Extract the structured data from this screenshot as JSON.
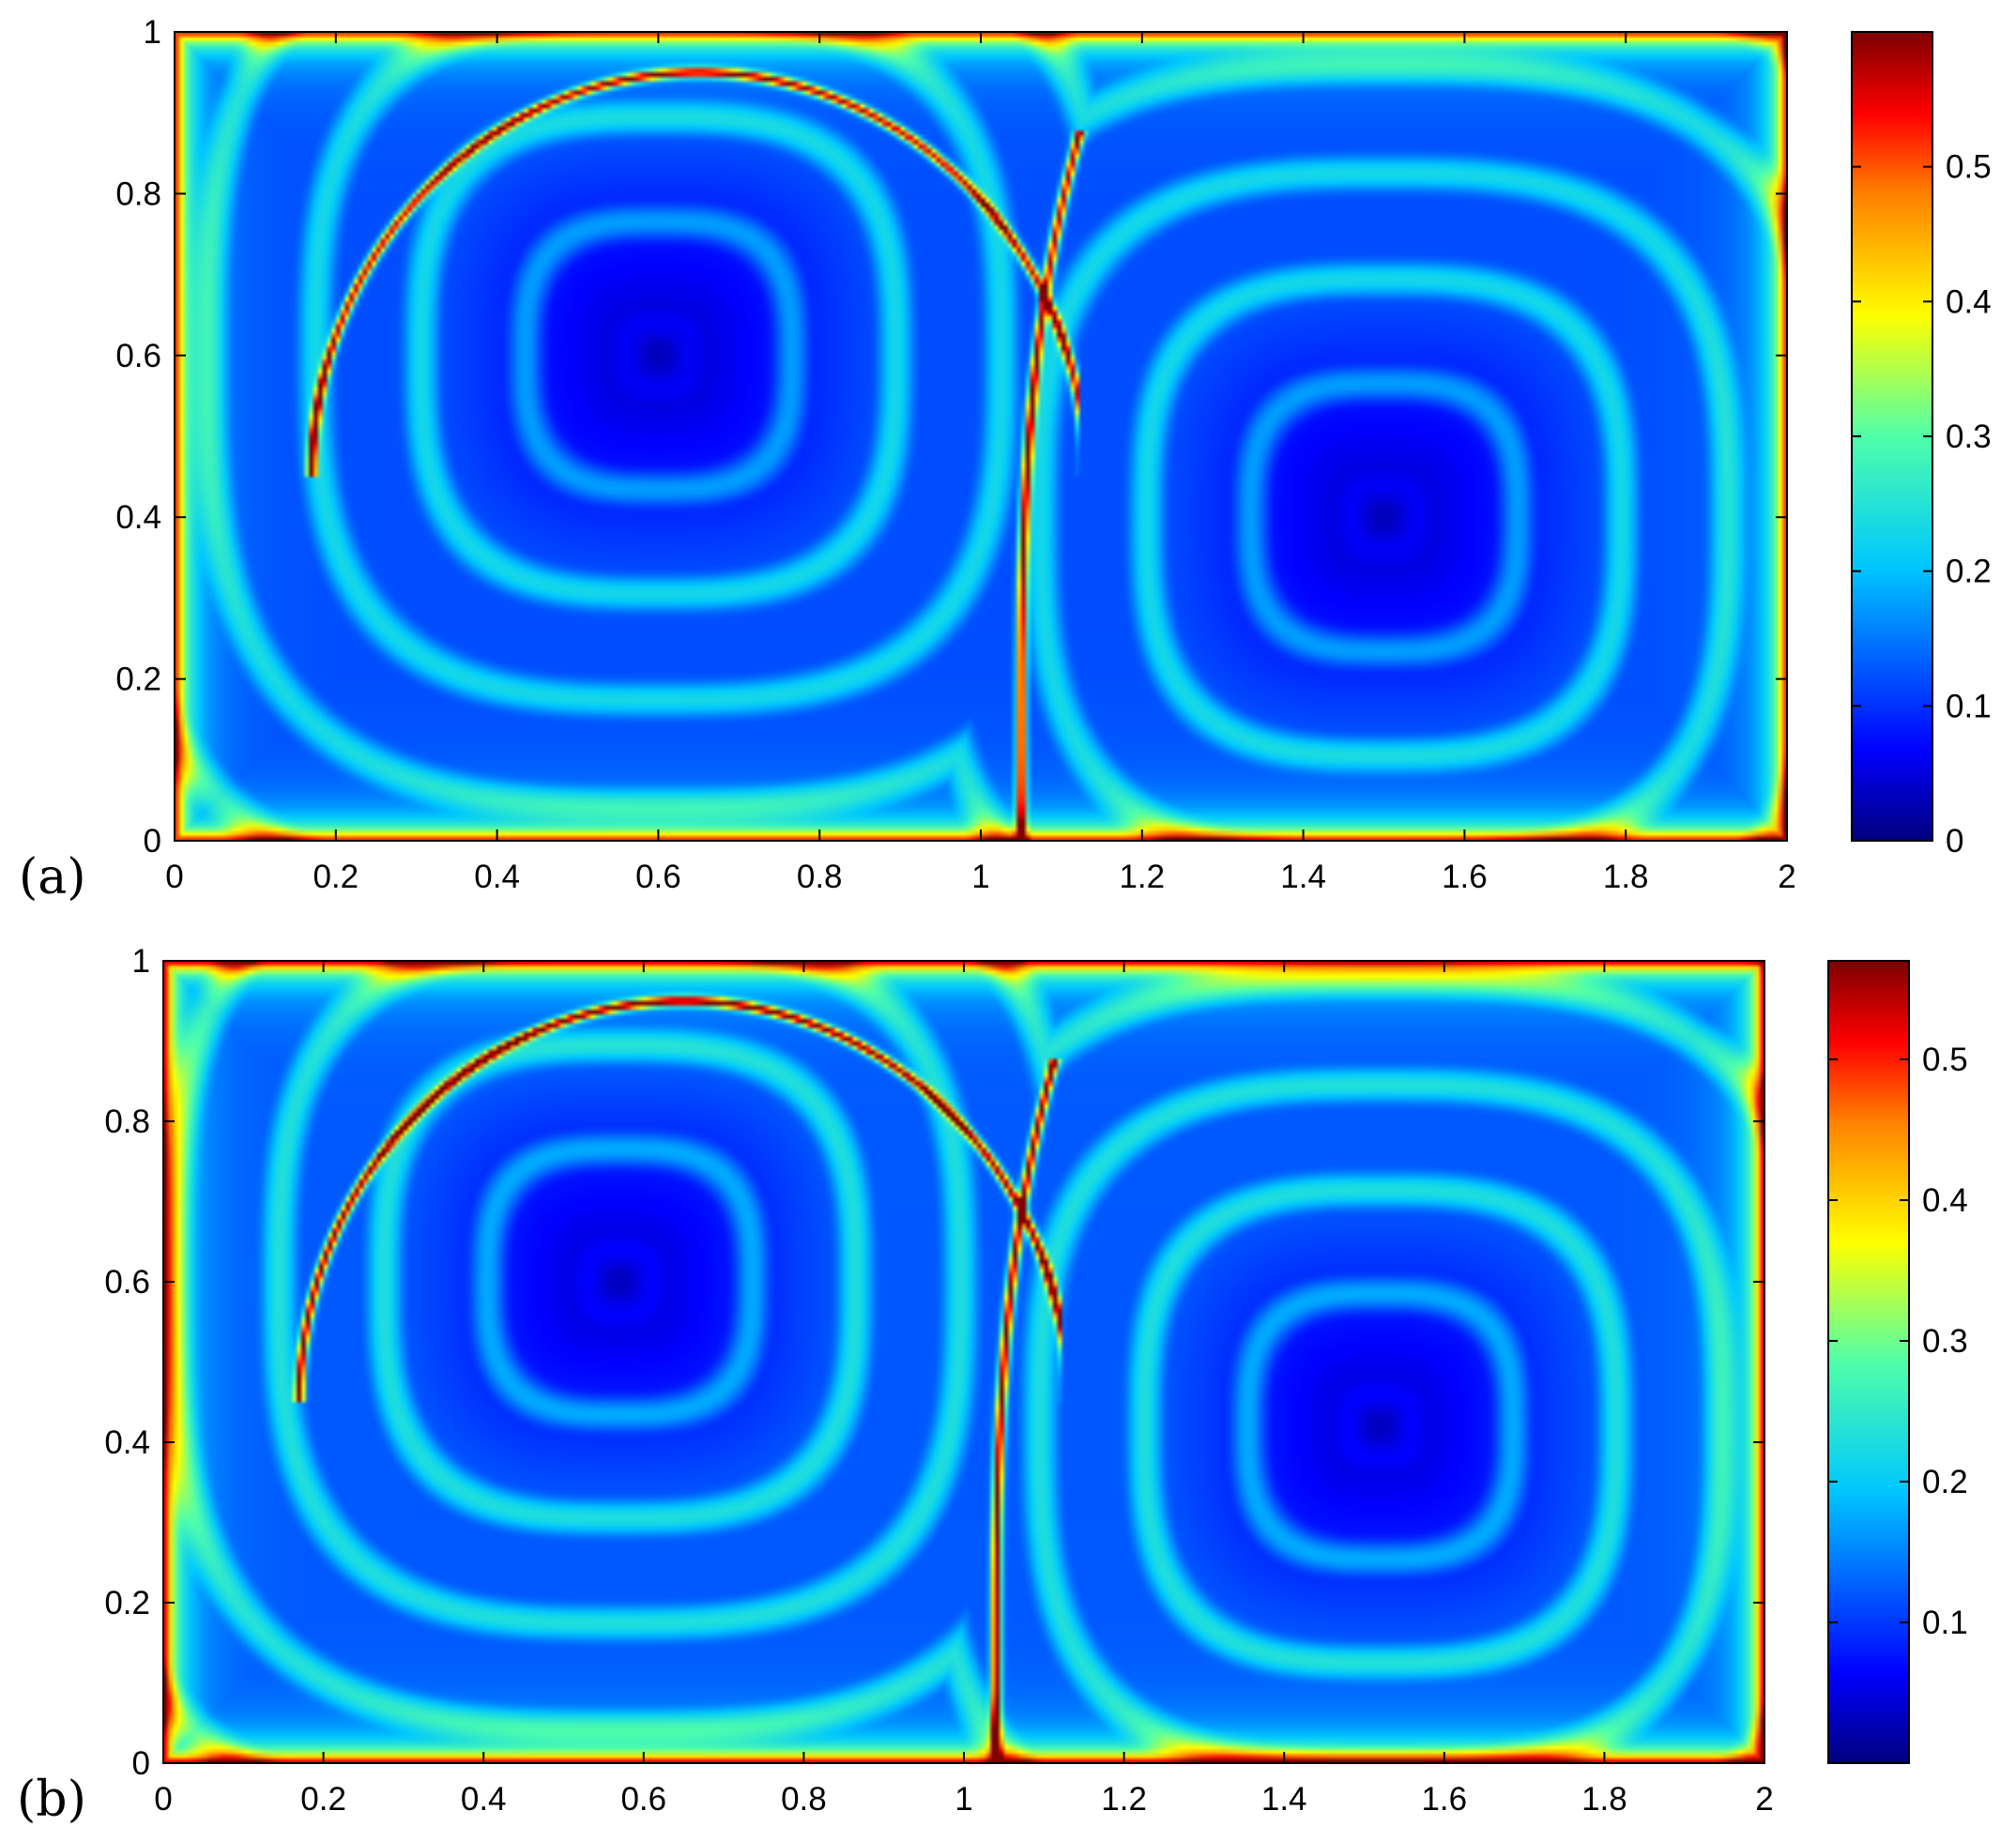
{
  "chart_data": [
    {
      "type": "heatmap",
      "panel_label": "(a)",
      "xlim": [
        0,
        2
      ],
      "ylim": [
        0,
        1
      ],
      "xticks": [
        0,
        0.2,
        0.4,
        0.6,
        0.8,
        1,
        1.2,
        1.4,
        1.6,
        1.8,
        2
      ],
      "xtick_labels": [
        "0",
        "0.2",
        "0.4",
        "0.6",
        "0.8",
        "1",
        "1.2",
        "1.4",
        "1.6",
        "1.8",
        "2"
      ],
      "yticks": [
        0,
        0.2,
        0.4,
        0.6,
        0.8,
        1
      ],
      "ytick_labels": [
        "0",
        "0.2",
        "0.4",
        "0.6",
        "0.8",
        "1"
      ],
      "colorbar": {
        "range": [
          0,
          0.6
        ],
        "ticks": [
          0,
          0.1,
          0.2,
          0.3,
          0.4,
          0.5
        ],
        "tick_labels": [
          "0",
          "0.1",
          "0.2",
          "0.3",
          "0.4",
          "0.5"
        ],
        "colormap": "jet"
      },
      "features": {
        "vortex_centers": [
          [
            0.6,
            0.6
          ],
          [
            1.5,
            0.4
          ]
        ],
        "separatrix_x_bottom": 1.05,
        "separatrix_top_y": 0.95,
        "background_level": 0.15
      }
    },
    {
      "type": "heatmap",
      "panel_label": "(b)",
      "xlim": [
        0,
        2
      ],
      "ylim": [
        0,
        1
      ],
      "xticks": [
        0,
        0.2,
        0.4,
        0.6,
        0.8,
        1,
        1.2,
        1.4,
        1.6,
        1.8,
        2
      ],
      "xtick_labels": [
        "0",
        "0.2",
        "0.4",
        "0.6",
        "0.8",
        "1",
        "1.2",
        "1.4",
        "1.6",
        "1.8",
        "2"
      ],
      "yticks": [
        0,
        0.2,
        0.4,
        0.6,
        0.8,
        1
      ],
      "ytick_labels": [
        "0",
        "0.2",
        "0.4",
        "0.6",
        "0.8",
        "1"
      ],
      "colorbar": {
        "range": [
          0,
          0.57
        ],
        "ticks": [
          0.1,
          0.2,
          0.3,
          0.4,
          0.5
        ],
        "tick_labels": [
          "0.1",
          "0.2",
          "0.3",
          "0.4",
          "0.5"
        ],
        "colormap": "jet"
      },
      "features": {
        "vortex_centers": [
          [
            0.57,
            0.6
          ],
          [
            1.52,
            0.42
          ]
        ],
        "separatrix_x_bottom": 1.04,
        "separatrix_top_y": 0.95,
        "background_level": 0.17
      }
    }
  ]
}
